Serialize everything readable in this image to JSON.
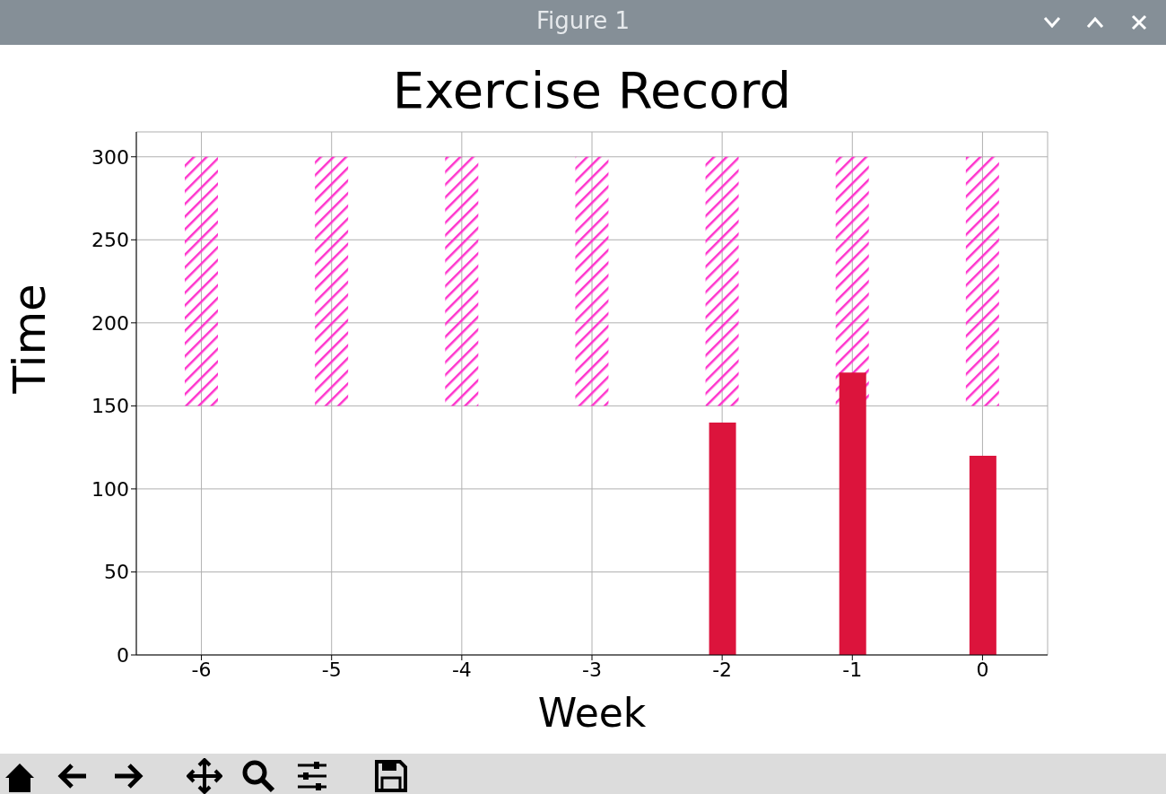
{
  "chart_data": {
    "type": "bar",
    "title": "Exercise Record",
    "xlabel": "Week",
    "ylabel": "Time",
    "annotations": [
      "Figure 1"
    ],
    "categories": [
      "-6",
      "-5",
      "-4",
      "-3",
      "-2",
      "-1",
      "0"
    ],
    "series": [
      {
        "color": "#ff33cc",
        "base": [
          150,
          150,
          150,
          150,
          150,
          150,
          150
        ],
        "values": [
          150,
          150,
          150,
          150,
          150,
          150,
          150
        ]
      },
      {
        "color": "#dc143c",
        "values": [
          null,
          null,
          null,
          null,
          140,
          170,
          120
        ]
      }
    ],
    "ylim": [
      0,
      315
    ],
    "yticks": [
      0,
      50,
      100,
      150,
      200,
      250,
      300
    ],
    "grid": true
  }
}
